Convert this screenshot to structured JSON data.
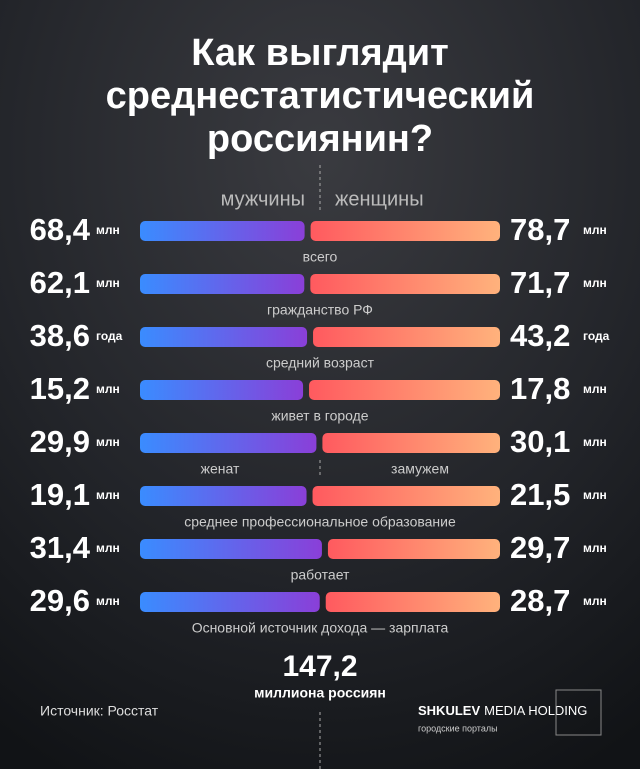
{
  "chart_data": {
    "type": "bar",
    "title": [
      "Как выглядит",
      "среднестатистический",
      "россиянин?"
    ],
    "categories": [
      "всего",
      "гражданство РФ",
      "средний возраст",
      "живет в городе",
      null,
      "среднее профессиональное образование",
      "работает",
      "Основной источник дохода — зарплата"
    ],
    "series": [
      {
        "name": "мужчины",
        "color": [
          "#3a8cff",
          "#8a3fd8"
        ],
        "values": [
          68.4,
          62.1,
          38.6,
          15.2,
          29.9,
          19.1,
          31.4,
          29.6
        ],
        "value_labels": [
          "68,4",
          "62,1",
          "38,6",
          "15,2",
          "29,9",
          "19,1",
          "31,4",
          "29,6"
        ],
        "units": [
          "млн",
          "млн",
          "года",
          "млн",
          "млн",
          "млн",
          "млн",
          "млн"
        ],
        "labels": [
          null,
          null,
          null,
          null,
          "женат",
          null,
          null,
          null
        ]
      },
      {
        "name": "женщины",
        "color": [
          "#ff5a5f",
          "#ffb27c"
        ],
        "values": [
          78.7,
          71.7,
          43.2,
          17.8,
          30.1,
          21.5,
          29.7,
          28.7
        ],
        "value_labels": [
          "78,7",
          "71,7",
          "43,2",
          "17,8",
          "30,1",
          "21,5",
          "29,7",
          "28,7"
        ],
        "units": [
          "млн",
          "млн",
          "года",
          "млн",
          "млн",
          "млн",
          "млн",
          "млн"
        ],
        "labels": [
          null,
          null,
          null,
          null,
          "замужем",
          null,
          null,
          null
        ]
      }
    ],
    "total": {
      "value": 147.2,
      "label": "147,2"
    },
    "total_caption": "миллиона россиян",
    "source": "Источник: Росстат",
    "brand": {
      "bold": "SHKULEV",
      "light": "MEDIA HOLDING",
      "sub": "городские порталы"
    }
  }
}
